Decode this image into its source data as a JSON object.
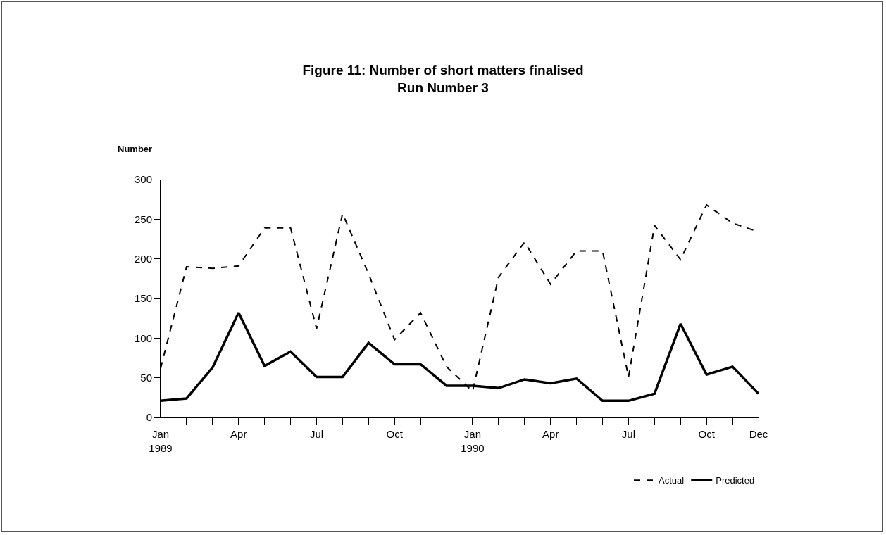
{
  "chart_data": {
    "type": "line",
    "title": "Figure 11: Number of short matters finalised",
    "subtitle": "Run Number 3",
    "ylabel": "Number",
    "categories": [
      "Jan 1989",
      null,
      null,
      "Apr",
      null,
      null,
      "Jul",
      null,
      null,
      "Oct",
      null,
      null,
      "Jan 1990",
      null,
      null,
      "Apr",
      null,
      null,
      "Jul",
      null,
      null,
      "Oct",
      null,
      "Dec"
    ],
    "series": [
      {
        "name": "Actual",
        "color": "#000000",
        "line_style": "dashed",
        "values": [
          62,
          190,
          188,
          191,
          239,
          239,
          112,
          257,
          181,
          98,
          132,
          64,
          33,
          177,
          221,
          168,
          210,
          210,
          51,
          242,
          199,
          268,
          245,
          234
        ]
      },
      {
        "name": "Predicted",
        "color": "#000000",
        "line_style": "solid",
        "values": [
          21,
          24,
          63,
          132,
          65,
          83,
          51,
          51,
          94,
          67,
          67,
          40,
          40,
          37,
          48,
          43,
          49,
          21,
          21,
          30,
          118,
          54,
          64,
          30
        ]
      }
    ],
    "ylim": [
      0,
      300
    ],
    "yticks": [
      0,
      50,
      100,
      150,
      200,
      250,
      300
    ],
    "grid": false,
    "legend": "bottom right",
    "marker": "none"
  }
}
